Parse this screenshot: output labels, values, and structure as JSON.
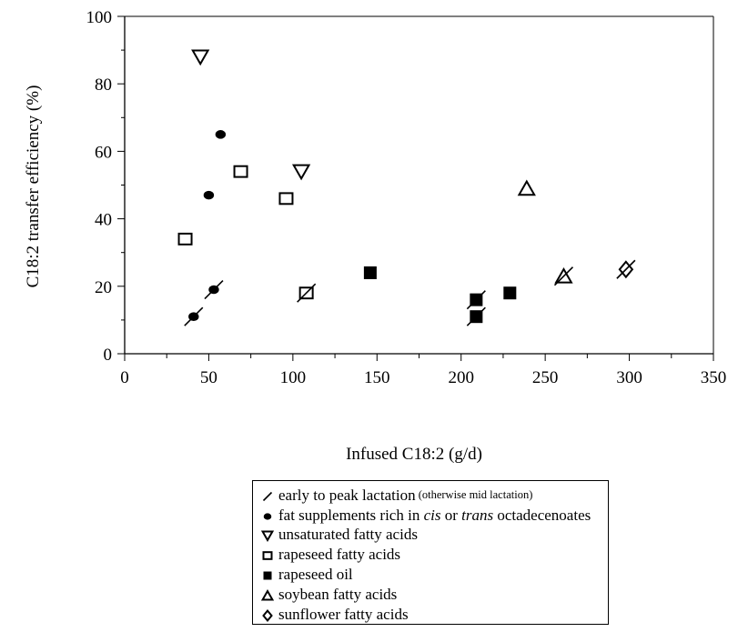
{
  "chart_data": {
    "type": "scatter",
    "title": "",
    "xlabel": "Infused C18:2 (g/d)",
    "ylabel": "C18:2 transfer efficiency (%)",
    "xlim": [
      0,
      350
    ],
    "ylim": [
      0,
      100
    ],
    "xticks": [
      0,
      50,
      100,
      150,
      200,
      250,
      300,
      350
    ],
    "yticks": [
      0,
      20,
      40,
      60,
      80,
      100
    ],
    "grid": false,
    "legend_position": "below",
    "series": [
      {
        "name": "fat supplements rich in cis or trans octadecenoates",
        "marker": "filled-circle",
        "points": [
          {
            "x": 57,
            "y": 65,
            "early": false
          },
          {
            "x": 50,
            "y": 47,
            "early": false
          },
          {
            "x": 53,
            "y": 19,
            "early": true
          },
          {
            "x": 41,
            "y": 11,
            "early": true
          }
        ]
      },
      {
        "name": "unsaturated fatty acids",
        "marker": "open-triangle-down",
        "points": [
          {
            "x": 45,
            "y": 88,
            "early": false
          },
          {
            "x": 105,
            "y": 54,
            "early": false
          }
        ]
      },
      {
        "name": "rapeseed fatty acids",
        "marker": "open-square",
        "points": [
          {
            "x": 69,
            "y": 54,
            "early": false
          },
          {
            "x": 96,
            "y": 46,
            "early": false
          },
          {
            "x": 36,
            "y": 34,
            "early": false
          },
          {
            "x": 108,
            "y": 18,
            "early": true
          }
        ]
      },
      {
        "name": "rapeseed oil",
        "marker": "filled-square",
        "points": [
          {
            "x": 146,
            "y": 24,
            "early": false
          },
          {
            "x": 229,
            "y": 18,
            "early": false
          },
          {
            "x": 209,
            "y": 16,
            "early": true
          },
          {
            "x": 209,
            "y": 11,
            "early": true
          }
        ]
      },
      {
        "name": "soybean fatty acids",
        "marker": "open-triangle-up",
        "points": [
          {
            "x": 239,
            "y": 49,
            "early": false
          },
          {
            "x": 261,
            "y": 23,
            "early": true
          }
        ]
      },
      {
        "name": "sunflower fatty acids",
        "marker": "open-diamond",
        "points": [
          {
            "x": 298,
            "y": 25,
            "early": true
          }
        ]
      }
    ]
  },
  "legend": {
    "items": [
      {
        "symbol": "slash",
        "text": "early to peak lactation",
        "small": " (otherwise mid lactation)"
      },
      {
        "symbol": "filled-circle",
        "text": "fat supplements rich in ",
        "italic1": "cis",
        "mid": " or ",
        "italic2": "trans",
        "tail": " octadecenoates"
      },
      {
        "symbol": "open-triangle-down",
        "text": "unsaturated fatty acids"
      },
      {
        "symbol": "open-square",
        "text": "rapeseed fatty acids"
      },
      {
        "symbol": "filled-square",
        "text": "rapeseed oil"
      },
      {
        "symbol": "open-triangle-up",
        "text": "soybean fatty acids"
      },
      {
        "symbol": "open-diamond",
        "text": "sunflower fatty acids"
      }
    ]
  }
}
